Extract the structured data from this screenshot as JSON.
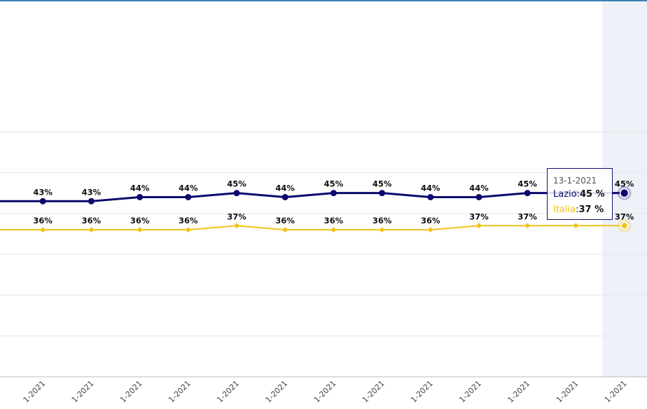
{
  "chart_data": {
    "type": "line",
    "x": [
      "1-2021",
      "1-2021",
      "1-2021",
      "1-2021",
      "1-2021",
      "1-2021",
      "1-2021",
      "1-2021",
      "1-2021",
      "1-2021",
      "1-2021",
      "1-2021",
      "1-2021",
      "1-2021"
    ],
    "series": [
      {
        "name": "Lazio",
        "color": "#0a0a6e",
        "values": [
          43,
          43,
          43,
          44,
          44,
          45,
          44,
          45,
          45,
          44,
          44,
          45,
          45,
          45
        ],
        "labels": [
          "%",
          "43%",
          "43%",
          "44%",
          "44%",
          "45%",
          "44%",
          "45%",
          "45%",
          "44%",
          "44%",
          "45%",
          "",
          "45%"
        ]
      },
      {
        "name": "Italia",
        "color": "#f2c31a",
        "values": [
          36,
          36,
          36,
          36,
          36,
          37,
          36,
          36,
          36,
          36,
          37,
          37,
          37,
          37
        ],
        "labels": [
          "%",
          "36%",
          "36%",
          "36%",
          "36%",
          "37%",
          "36%",
          "36%",
          "36%",
          "36%",
          "37%",
          "37%",
          "",
          "37%"
        ]
      }
    ],
    "ylim": [
      0,
      65
    ],
    "grid": true,
    "highlight_index": 13,
    "title": "",
    "xlabel": "",
    "ylabel": ""
  },
  "tooltip": {
    "date": "13-1-2021",
    "rows": [
      {
        "series": "Lazio",
        "sep": ":",
        "value": "45 %"
      },
      {
        "series": "Italia",
        "sep": ":",
        "value": "37 %"
      }
    ]
  }
}
